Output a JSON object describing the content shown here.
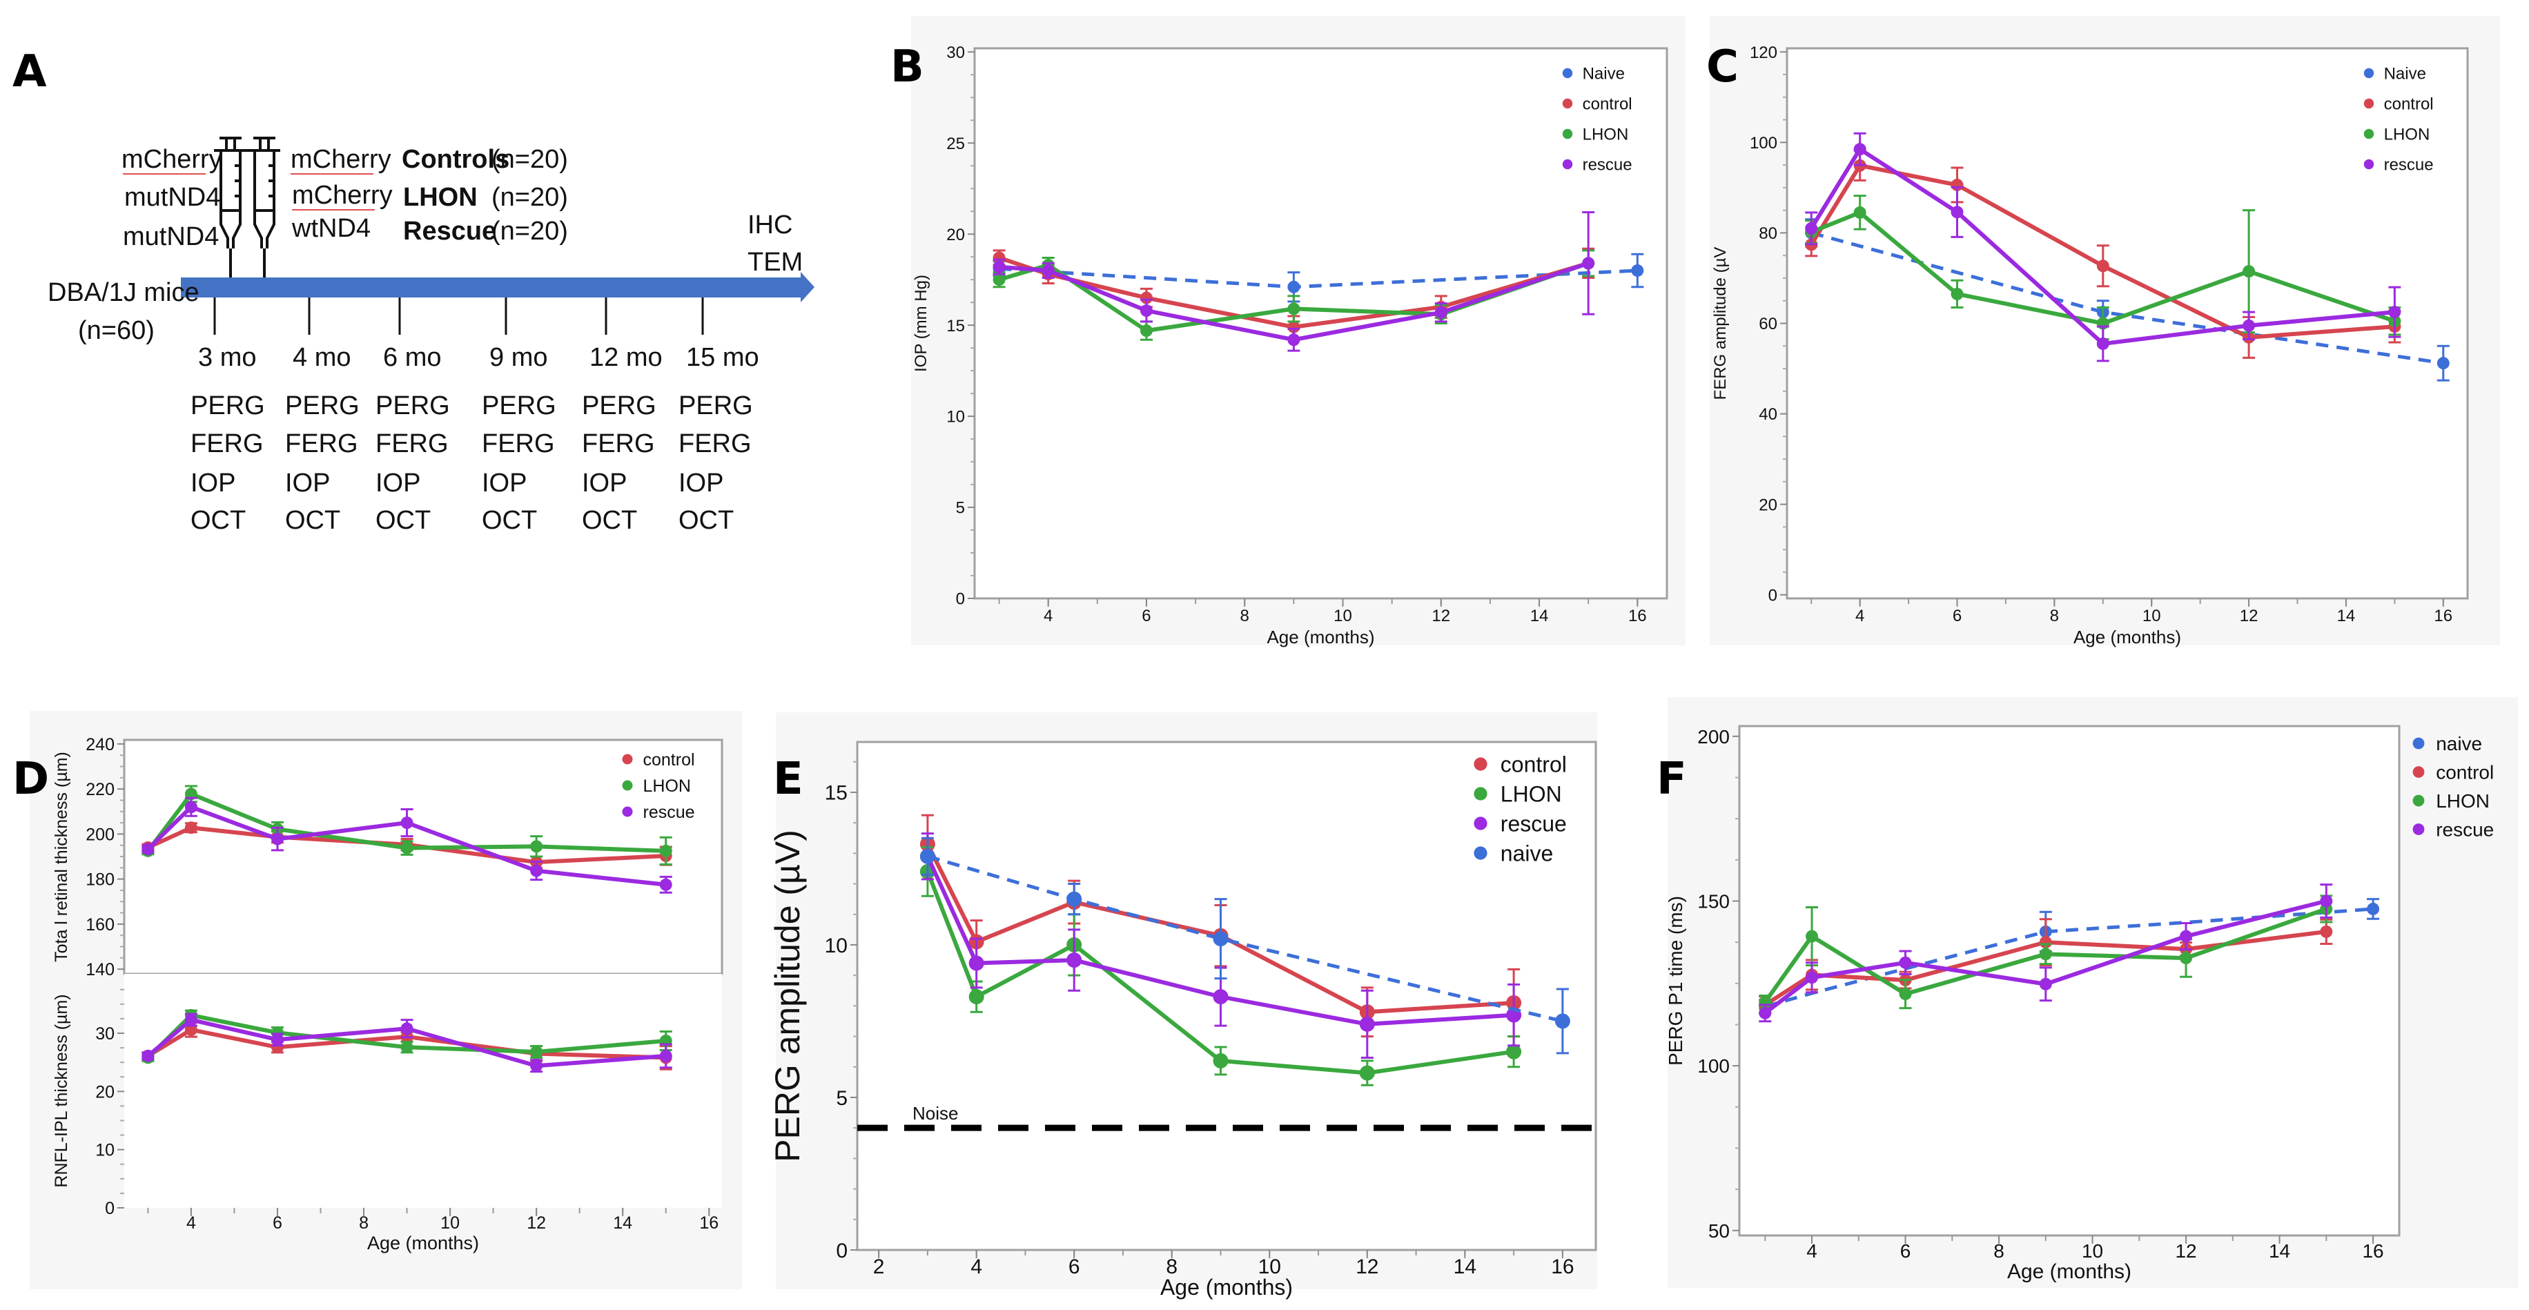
{
  "panel_labels": [
    "A",
    "B",
    "C",
    "D",
    "E",
    "F"
  ],
  "timeline": {
    "colors": {
      "arrow": "#4472c4"
    },
    "left_syringe_lines": [
      "mCherry",
      "mutND4",
      "mutND4"
    ],
    "right_syringe_lines": [
      "mCherry",
      "mCherry",
      "wtND4"
    ],
    "groups": [
      {
        "name": "Controls",
        "n": "(n=20)"
      },
      {
        "name": "LHON",
        "n": "(n=20)"
      },
      {
        "name": "Rescue",
        "n": "(n=20)"
      }
    ],
    "start_label": "DBA/1J mice",
    "start_n": "(n=60)",
    "end_labels": [
      "IHC",
      "TEM"
    ],
    "timepoints": [
      {
        "label": "3 mo",
        "tests": [
          "PERG",
          "FERG",
          "IOP",
          "OCT"
        ]
      },
      {
        "label": "4 mo",
        "tests": [
          "PERG",
          "FERG",
          "IOP",
          "OCT"
        ]
      },
      {
        "label": "6 mo",
        "tests": [
          "PERG",
          "FERG",
          "IOP",
          "OCT"
        ]
      },
      {
        "label": "9 mo",
        "tests": [
          "PERG",
          "FERG",
          "IOP",
          "OCT"
        ]
      },
      {
        "label": "12 mo",
        "tests": [
          "PERG",
          "FERG",
          "IOP",
          "OCT"
        ]
      },
      {
        "label": "15 mo",
        "tests": [
          "PERG",
          "FERG",
          "IOP",
          "OCT"
        ]
      }
    ]
  },
  "colors": {
    "naive": "#3d6fd9",
    "control": "#d6454f",
    "LHON": "#3aa83e",
    "rescue": "#9b2ae0",
    "noise": "#000000"
  },
  "chart_data": [
    {
      "id": "B",
      "type": "line",
      "xlabel": "Age (months)",
      "ylabel": "IOP (mm Hg)",
      "xlim": [
        2.5,
        16.6
      ],
      "ylim": [
        0,
        30.2
      ],
      "xticks": [
        4,
        6,
        8,
        10,
        12,
        14,
        16
      ],
      "yticks": [
        0,
        5,
        10,
        15,
        20,
        25,
        30
      ],
      "grid": false,
      "legend": "top-right",
      "series": [
        {
          "name": "Naive",
          "color": "#3d6fd9",
          "line_style": "dashed",
          "points": [
            [
              3,
              18.1,
              0.4
            ],
            [
              9,
              17.1,
              0.8
            ],
            [
              16,
              18.0,
              0.9
            ]
          ]
        },
        {
          "name": "control",
          "color": "#d6454f",
          "line_style": "solid",
          "points": [
            [
              3,
              18.7,
              0.4
            ],
            [
              4,
              17.8,
              0.5
            ],
            [
              6,
              16.5,
              0.5
            ],
            [
              9,
              14.9,
              0.6
            ],
            [
              12,
              16.0,
              0.6
            ],
            [
              15,
              18.4,
              0.8
            ]
          ]
        },
        {
          "name": "LHON",
          "color": "#3aa83e",
          "line_style": "solid",
          "points": [
            [
              3,
              17.5,
              0.4
            ],
            [
              4,
              18.3,
              0.4
            ],
            [
              6,
              14.7,
              0.5
            ],
            [
              9,
              15.9,
              0.7
            ],
            [
              12,
              15.6,
              0.5
            ],
            [
              15,
              18.4,
              0.7
            ]
          ]
        },
        {
          "name": "rescue",
          "color": "#9b2ae0",
          "line_style": "solid",
          "points": [
            [
              3,
              18.2,
              0.4
            ],
            [
              4,
              18.0,
              0.4
            ],
            [
              6,
              15.8,
              0.6
            ],
            [
              9,
              14.2,
              0.6
            ],
            [
              12,
              15.7,
              0.5
            ],
            [
              15,
              18.4,
              2.8
            ]
          ]
        }
      ]
    },
    {
      "id": "C",
      "type": "line",
      "xlabel": "Age (months)",
      "ylabel": "FERG amplitude (µV",
      "xlim": [
        2.5,
        16.5
      ],
      "ylim": [
        -0.8,
        120.8
      ],
      "xticks": [
        4,
        6,
        8,
        10,
        12,
        14,
        16
      ],
      "yticks": [
        0,
        20,
        40,
        60,
        80,
        100,
        120
      ],
      "grid": false,
      "legend": "top-right",
      "series": [
        {
          "name": "Naive",
          "color": "#3d6fd9",
          "line_style": "dashed",
          "points": [
            [
              3,
              80,
              3
            ],
            [
              9,
              62.5,
              2.5
            ],
            [
              16,
              51.2,
              3.8
            ]
          ]
        },
        {
          "name": "control",
          "color": "#d6454f",
          "line_style": "solid",
          "points": [
            [
              3,
              77.4,
              2.5
            ],
            [
              4,
              94.9,
              3.3
            ],
            [
              6,
              90.6,
              3.8
            ],
            [
              9,
              72.7,
              4.5
            ],
            [
              12,
              56.9,
              4.5
            ],
            [
              15,
              59.3,
              3.5
            ]
          ]
        },
        {
          "name": "LHON",
          "color": "#3aa83e",
          "line_style": "solid",
          "points": [
            [
              3,
              80.2,
              2.5
            ],
            [
              4,
              84.5,
              3.7
            ],
            [
              6,
              66.5,
              3
            ],
            [
              9,
              60,
              3.5
            ],
            [
              12,
              71.5,
              13.5
            ],
            [
              15,
              60.5,
              3
            ]
          ]
        },
        {
          "name": "rescue",
          "color": "#9b2ae0",
          "line_style": "solid",
          "points": [
            [
              3,
              81,
              3.5
            ],
            [
              4,
              98.5,
              3.5
            ],
            [
              6,
              84.6,
              5.5
            ],
            [
              9,
              55.5,
              3.8
            ],
            [
              12,
              59.5,
              3
            ],
            [
              15,
              62.5,
              5.5
            ]
          ]
        }
      ]
    },
    {
      "id": "D",
      "type": "line",
      "xlabel": "Age (months)",
      "xlim": [
        2.45,
        16.3
      ],
      "xticks": [
        4,
        6,
        8,
        10,
        12,
        14,
        16
      ],
      "grid": false,
      "legend": "top-right",
      "legend_entries": [
        {
          "name": "control",
          "color": "#d6454f"
        },
        {
          "name": "LHON",
          "color": "#3aa83e"
        },
        {
          "name": "rescue",
          "color": "#9b2ae0"
        }
      ],
      "panels": [
        {
          "ylabel": "Tota l retinal thickness (µm)",
          "ylim": [
            137.9,
            241.8
          ],
          "yticks": [
            140,
            160,
            180,
            200,
            220,
            240
          ],
          "series": [
            {
              "name": "control",
              "color": "#d6454f",
              "line_style": "solid",
              "points": [
                [
                  3,
                  194,
                  1.5
                ],
                [
                  4,
                  202.8,
                  2
                ],
                [
                  6,
                  198.7,
                  2.5
                ],
                [
                  9,
                  195.3,
                  2.5
                ],
                [
                  12,
                  187.5,
                  2.5
                ],
                [
                  15,
                  190.3,
                  4
                ]
              ]
            },
            {
              "name": "LHON",
              "color": "#3aa83e",
              "line_style": "solid",
              "points": [
                [
                  3,
                  192.5,
                  1.5
                ],
                [
                  4,
                  217.8,
                  3.5
                ],
                [
                  6,
                  202.2,
                  3
                ],
                [
                  9,
                  193.8,
                  3
                ],
                [
                  12,
                  194.5,
                  4.5
                ],
                [
                  15,
                  192.5,
                  6
                ]
              ]
            },
            {
              "name": "rescue",
              "color": "#9b2ae0",
              "line_style": "solid",
              "points": [
                [
                  3,
                  193.3,
                  1.5
                ],
                [
                  4,
                  212,
                  4
                ],
                [
                  6,
                  197.8,
                  5
                ],
                [
                  9,
                  205,
                  6
                ],
                [
                  12,
                  183.7,
                  4
                ],
                [
                  15,
                  177.5,
                  3.5
                ]
              ]
            }
          ]
        },
        {
          "ylabel": "RNFL-IPL thickness (µm)",
          "ylim": [
            0,
            40.2
          ],
          "yticks": [
            0,
            10,
            20,
            30
          ],
          "series": [
            {
              "name": "control",
              "color": "#d6454f",
              "line_style": "solid",
              "points": [
                [
                  3,
                  26.1,
                  0.6
                ],
                [
                  4,
                  30.6,
                  1.2
                ],
                [
                  6,
                  27.6,
                  0.9
                ],
                [
                  9,
                  29.4,
                  0.8
                ],
                [
                  12,
                  26.5,
                  1.3
                ],
                [
                  15,
                  25.8,
                  2
                ]
              ]
            },
            {
              "name": "LHON",
              "color": "#3aa83e",
              "line_style": "solid",
              "points": [
                [
                  3,
                  25.8,
                  0.6
                ],
                [
                  4,
                  33.1,
                  0.8
                ],
                [
                  6,
                  30.1,
                  0.9
                ],
                [
                  9,
                  27.6,
                  0.9
                ],
                [
                  12,
                  26.8,
                  1
                ],
                [
                  15,
                  28.7,
                  1.6
                ]
              ]
            },
            {
              "name": "rescue",
              "color": "#9b2ae0",
              "line_style": "solid",
              "points": [
                [
                  3,
                  26.1,
                  0.6
                ],
                [
                  4,
                  32.3,
                  1
                ],
                [
                  6,
                  28.9,
                  1
                ],
                [
                  9,
                  30.8,
                  1.5
                ],
                [
                  12,
                  24.4,
                  1
                ],
                [
                  15,
                  26.1,
                  2
                ]
              ]
            }
          ]
        }
      ]
    },
    {
      "id": "E",
      "type": "line",
      "xlabel": "Age (months)",
      "ylabel": "PERG amplitude (µV)",
      "xlim": [
        1.56,
        16.68
      ],
      "ylim": [
        0,
        16.65
      ],
      "xticks": [
        2,
        4,
        6,
        8,
        10,
        12,
        14,
        16
      ],
      "yticks": [
        0,
        5,
        10,
        15
      ],
      "grid": false,
      "legend": "top-right",
      "annotations": [
        {
          "label": "Noise",
          "y": 4.0,
          "line_style": "dashed"
        }
      ],
      "series": [
        {
          "name": "control",
          "color": "#d6454f",
          "line_style": "solid",
          "points": [
            [
              3,
              13.3,
              0.95
            ],
            [
              4,
              10.1,
              0.7
            ],
            [
              6,
              11.4,
              0.7
            ],
            [
              9,
              10.3,
              1.0
            ],
            [
              12,
              7.8,
              0.8
            ],
            [
              15,
              8.1,
              1.1
            ]
          ]
        },
        {
          "name": "LHON",
          "color": "#3aa83e",
          "line_style": "solid",
          "points": [
            [
              3,
              12.4,
              0.8
            ],
            [
              4,
              8.3,
              0.5
            ],
            [
              6,
              10.0,
              1.0
            ],
            [
              9,
              6.2,
              0.45
            ],
            [
              12,
              5.8,
              0.4
            ],
            [
              15,
              6.5,
              0.5
            ]
          ]
        },
        {
          "name": "rescue",
          "color": "#9b2ae0",
          "line_style": "solid",
          "points": [
            [
              3,
              12.9,
              0.75
            ],
            [
              4,
              9.4,
              0.8
            ],
            [
              6,
              9.5,
              1.0
            ],
            [
              9,
              8.3,
              0.95
            ],
            [
              12,
              7.4,
              1.1
            ],
            [
              15,
              7.7,
              1.0
            ]
          ]
        },
        {
          "name": "naive",
          "color": "#3d6fd9",
          "line_style": "dashed",
          "points": [
            [
              3,
              12.9,
              0.6
            ],
            [
              6,
              11.5,
              0.5
            ],
            [
              9,
              10.2,
              1.3
            ],
            [
              16,
              7.5,
              1.05
            ]
          ]
        }
      ]
    },
    {
      "id": "F",
      "type": "line",
      "xlabel": "Age (months)",
      "ylabel": "PERG P1 time (ms)",
      "xlim": [
        2.45,
        16.56
      ],
      "ylim": [
        48.5,
        203.1
      ],
      "xticks": [
        4,
        6,
        8,
        10,
        12,
        14,
        16
      ],
      "yticks": [
        50,
        100,
        150,
        200
      ],
      "grid": false,
      "legend": "top-right",
      "series": [
        {
          "name": "naive",
          "color": "#3d6fd9",
          "line_style": "dashed",
          "points": [
            [
              3,
              118,
              2
            ],
            [
              4,
              122,
              2
            ],
            [
              9,
              140.7,
              6
            ],
            [
              12,
              143.5,
              2
            ],
            [
              16,
              147.6,
              3
            ]
          ]
        },
        {
          "name": "control",
          "color": "#d6454f",
          "line_style": "solid",
          "points": [
            [
              3,
              118.5,
              2.5
            ],
            [
              4,
              127.6,
              4.5
            ],
            [
              6,
              126,
              2.5
            ],
            [
              9,
              137.5,
              7
            ],
            [
              12,
              135.4,
              2
            ],
            [
              15,
              140.7,
              3.7
            ]
          ]
        },
        {
          "name": "LHON",
          "color": "#3aa83e",
          "line_style": "solid",
          "points": [
            [
              3,
              119.3,
              2
            ],
            [
              4,
              139.3,
              8.8
            ],
            [
              6,
              121.8,
              4.3
            ],
            [
              9,
              133.9,
              3
            ],
            [
              12,
              132.7,
              5.7
            ],
            [
              15,
              147.6,
              4
            ]
          ]
        },
        {
          "name": "rescue",
          "color": "#9b2ae0",
          "line_style": "solid",
          "points": [
            [
              3,
              116,
              2.5
            ],
            [
              4,
              126.8,
              4.5
            ],
            [
              6,
              131.3,
              3.5
            ],
            [
              9,
              124.8,
              5
            ],
            [
              12,
              139.3,
              4
            ],
            [
              15,
              150,
              5
            ]
          ]
        }
      ]
    }
  ]
}
